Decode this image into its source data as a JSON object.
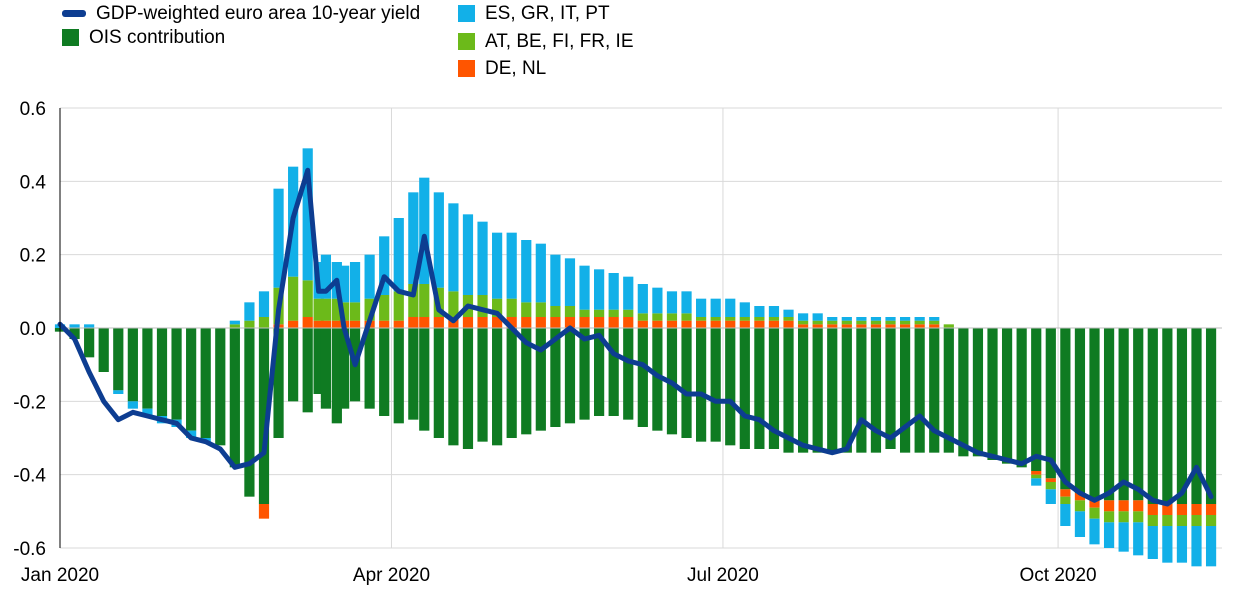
{
  "legend": {
    "items": [
      {
        "label": "GDP-weighted euro area 10-year yield",
        "kind": "line",
        "color": "#0d3d91"
      },
      {
        "label": "OIS contribution",
        "kind": "box",
        "color": "#0f7b22"
      },
      {
        "label": "ES, GR, IT, PT",
        "kind": "box",
        "color": "#12b0e8"
      },
      {
        "label": "AT, BE, FI, FR, IE",
        "kind": "box",
        "color": "#6cba1a"
      },
      {
        "label": "DE, NL",
        "kind": "box",
        "color": "#ff5500"
      }
    ]
  },
  "chart_data": {
    "type": "bar",
    "subtype": "stacked-bar-with-line",
    "title": "",
    "xlabel": "",
    "ylabel": "",
    "ylim": [
      -0.6,
      0.6
    ],
    "yticks": [
      "0.6",
      "0.4",
      "0.2",
      "0.0",
      "-0.2",
      "-0.4",
      "-0.6"
    ],
    "yticks_values": [
      0.6,
      0.4,
      0.2,
      0.0,
      -0.2,
      -0.4,
      -0.6
    ],
    "xlim": [
      "2020-01-01",
      "2020-11-15"
    ],
    "xticks": [
      {
        "label": "Jan 2020",
        "date": "2020-01-01"
      },
      {
        "label": "Apr 2020",
        "date": "2020-04-01"
      },
      {
        "label": "Jul 2020",
        "date": "2020-07-01"
      },
      {
        "label": "Oct 2020",
        "date": "2020-10-01"
      }
    ],
    "grid": true,
    "legend_position": "top-left",
    "colors": {
      "line": "#0d3d91",
      "ois": "#0f7b22",
      "periphery": "#12b0e8",
      "semicore": "#6cba1a",
      "core": "#ff5500",
      "grid": "#d9d9d9"
    },
    "x": [
      "2020-01-01",
      "2020-01-05",
      "2020-01-09",
      "2020-01-13",
      "2020-01-17",
      "2020-01-21",
      "2020-01-25",
      "2020-01-29",
      "2020-02-02",
      "2020-02-06",
      "2020-02-10",
      "2020-02-14",
      "2020-02-18",
      "2020-02-22",
      "2020-02-26",
      "2020-03-01",
      "2020-03-05",
      "2020-03-09",
      "2020-03-12",
      "2020-03-14",
      "2020-03-17",
      "2020-03-19",
      "2020-03-22",
      "2020-03-26",
      "2020-03-30",
      "2020-04-03",
      "2020-04-07",
      "2020-04-10",
      "2020-04-14",
      "2020-04-18",
      "2020-04-22",
      "2020-04-26",
      "2020-04-30",
      "2020-05-04",
      "2020-05-08",
      "2020-05-12",
      "2020-05-16",
      "2020-05-20",
      "2020-05-24",
      "2020-05-28",
      "2020-06-01",
      "2020-06-05",
      "2020-06-09",
      "2020-06-13",
      "2020-06-17",
      "2020-06-21",
      "2020-06-25",
      "2020-06-29",
      "2020-07-03",
      "2020-07-07",
      "2020-07-11",
      "2020-07-15",
      "2020-07-19",
      "2020-07-23",
      "2020-07-27",
      "2020-07-31",
      "2020-08-04",
      "2020-08-08",
      "2020-08-12",
      "2020-08-16",
      "2020-08-20",
      "2020-08-24",
      "2020-08-28",
      "2020-09-01",
      "2020-09-05",
      "2020-09-09",
      "2020-09-13",
      "2020-09-17",
      "2020-09-21",
      "2020-09-25",
      "2020-09-29",
      "2020-10-03",
      "2020-10-07",
      "2020-10-11",
      "2020-10-15",
      "2020-10-19",
      "2020-10-23",
      "2020-10-27",
      "2020-10-31",
      "2020-11-04",
      "2020-11-08",
      "2020-11-12"
    ],
    "series": [
      {
        "name": "GDP-weighted euro area 10-year yield",
        "type": "line",
        "values": [
          0.01,
          -0.03,
          -0.12,
          -0.2,
          -0.25,
          -0.23,
          -0.24,
          -0.25,
          -0.26,
          -0.3,
          -0.31,
          -0.33,
          -0.38,
          -0.37,
          -0.34,
          0.05,
          0.3,
          0.43,
          0.1,
          0.1,
          0.13,
          0.0,
          -0.1,
          0.02,
          0.14,
          0.1,
          0.09,
          0.25,
          0.05,
          0.02,
          0.06,
          0.05,
          0.04,
          0.0,
          -0.04,
          -0.06,
          -0.03,
          0.0,
          -0.03,
          -0.02,
          -0.07,
          -0.09,
          -0.1,
          -0.13,
          -0.15,
          -0.18,
          -0.18,
          -0.2,
          -0.2,
          -0.24,
          -0.25,
          -0.28,
          -0.3,
          -0.32,
          -0.33,
          -0.34,
          -0.33,
          -0.25,
          -0.28,
          -0.3,
          -0.27,
          -0.24,
          -0.28,
          -0.3,
          -0.32,
          -0.34,
          -0.35,
          -0.36,
          -0.37,
          -0.35,
          -0.36,
          -0.42,
          -0.45,
          -0.47,
          -0.45,
          -0.42,
          -0.44,
          -0.47,
          -0.48,
          -0.45,
          -0.38,
          -0.46
        ]
      },
      {
        "name": "OIS contribution",
        "type": "bar",
        "values": [
          -0.01,
          -0.03,
          -0.08,
          -0.12,
          -0.17,
          -0.2,
          -0.22,
          -0.24,
          -0.25,
          -0.28,
          -0.3,
          -0.32,
          -0.38,
          -0.46,
          -0.48,
          -0.3,
          -0.2,
          -0.23,
          -0.18,
          -0.22,
          -0.26,
          -0.22,
          -0.2,
          -0.22,
          -0.24,
          -0.26,
          -0.25,
          -0.28,
          -0.3,
          -0.32,
          -0.33,
          -0.31,
          -0.32,
          -0.3,
          -0.29,
          -0.28,
          -0.27,
          -0.26,
          -0.25,
          -0.24,
          -0.24,
          -0.25,
          -0.27,
          -0.28,
          -0.29,
          -0.3,
          -0.31,
          -0.31,
          -0.32,
          -0.33,
          -0.33,
          -0.33,
          -0.34,
          -0.34,
          -0.34,
          -0.34,
          -0.34,
          -0.34,
          -0.34,
          -0.33,
          -0.34,
          -0.34,
          -0.34,
          -0.34,
          -0.35,
          -0.35,
          -0.36,
          -0.37,
          -0.38,
          -0.39,
          -0.41,
          -0.44,
          -0.45,
          -0.47,
          -0.47,
          -0.47,
          -0.47,
          -0.48,
          -0.48,
          -0.48,
          -0.48,
          -0.48
        ]
      },
      {
        "name": "ES, GR, IT, PT",
        "type": "bar",
        "values": [
          0.01,
          0.01,
          0.01,
          0.0,
          -0.01,
          -0.02,
          -0.02,
          -0.02,
          -0.02,
          -0.02,
          -0.01,
          0.0,
          0.01,
          0.05,
          0.07,
          0.27,
          0.3,
          0.36,
          0.1,
          0.12,
          0.1,
          0.1,
          0.11,
          0.12,
          0.16,
          0.2,
          0.25,
          0.29,
          0.26,
          0.24,
          0.22,
          0.2,
          0.18,
          0.18,
          0.17,
          0.16,
          0.14,
          0.13,
          0.12,
          0.11,
          0.1,
          0.09,
          0.08,
          0.07,
          0.06,
          0.06,
          0.05,
          0.05,
          0.05,
          0.04,
          0.03,
          0.03,
          0.02,
          0.02,
          0.02,
          0.01,
          0.01,
          0.01,
          0.01,
          0.01,
          0.01,
          0.01,
          0.01,
          0.0,
          0.0,
          0.0,
          0.0,
          0.0,
          0.0,
          -0.02,
          -0.04,
          -0.06,
          -0.07,
          -0.07,
          -0.07,
          -0.08,
          -0.09,
          -0.09,
          -0.1,
          -0.1,
          -0.11,
          -0.11
        ]
      },
      {
        "name": "AT, BE, FI, FR, IE",
        "type": "bar",
        "values": [
          0.0,
          0.0,
          0.0,
          0.0,
          0.0,
          0.0,
          0.0,
          0.0,
          0.0,
          0.0,
          0.0,
          0.0,
          0.01,
          0.02,
          0.03,
          0.1,
          0.12,
          0.1,
          0.06,
          0.06,
          0.06,
          0.05,
          0.05,
          0.06,
          0.07,
          0.08,
          0.09,
          0.09,
          0.08,
          0.07,
          0.06,
          0.06,
          0.05,
          0.05,
          0.04,
          0.04,
          0.03,
          0.03,
          0.02,
          0.02,
          0.02,
          0.02,
          0.02,
          0.02,
          0.02,
          0.02,
          0.01,
          0.01,
          0.01,
          0.01,
          0.01,
          0.01,
          0.01,
          0.01,
          0.01,
          0.01,
          0.01,
          0.01,
          0.01,
          0.01,
          0.01,
          0.01,
          0.01,
          0.01,
          0.0,
          0.0,
          0.0,
          0.0,
          0.0,
          -0.01,
          -0.02,
          -0.02,
          -0.03,
          -0.03,
          -0.03,
          -0.03,
          -0.03,
          -0.03,
          -0.03,
          -0.03,
          -0.03,
          -0.03
        ]
      },
      {
        "name": "DE, NL",
        "type": "bar",
        "values": [
          0.0,
          0.0,
          0.0,
          0.0,
          0.0,
          0.0,
          0.0,
          0.0,
          0.0,
          0.0,
          0.0,
          0.0,
          0.0,
          0.0,
          -0.04,
          0.01,
          0.02,
          0.03,
          0.02,
          0.02,
          0.02,
          0.02,
          0.02,
          0.02,
          0.02,
          0.02,
          0.03,
          0.03,
          0.03,
          0.03,
          0.03,
          0.03,
          0.03,
          0.03,
          0.03,
          0.03,
          0.03,
          0.03,
          0.03,
          0.03,
          0.03,
          0.03,
          0.02,
          0.02,
          0.02,
          0.02,
          0.02,
          0.02,
          0.02,
          0.02,
          0.02,
          0.02,
          0.02,
          0.01,
          0.01,
          0.01,
          0.01,
          0.01,
          0.01,
          0.01,
          0.01,
          0.01,
          0.01,
          0.0,
          0.0,
          0.0,
          0.0,
          0.0,
          0.0,
          -0.01,
          -0.01,
          -0.02,
          -0.02,
          -0.02,
          -0.03,
          -0.03,
          -0.03,
          -0.03,
          -0.03,
          -0.03,
          -0.03,
          -0.03
        ]
      }
    ]
  }
}
